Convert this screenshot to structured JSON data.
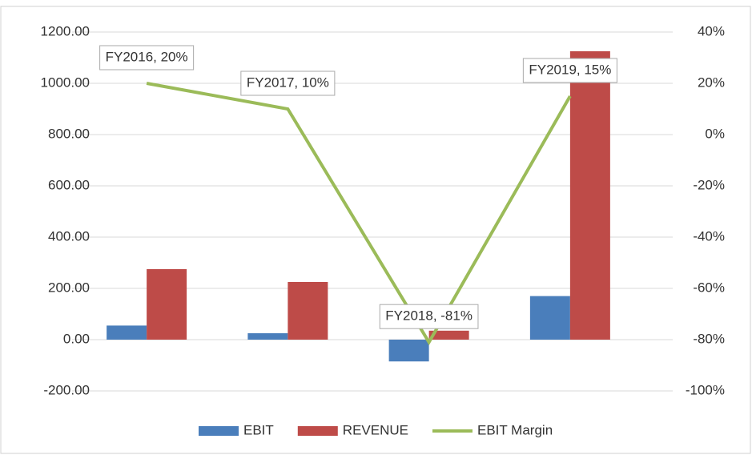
{
  "chart_data": {
    "type": "bar",
    "categories": [
      null,
      null,
      null,
      null
    ],
    "series": [
      {
        "name": "EBIT",
        "color": "#4a7ebb",
        "values": [
          55,
          25,
          -85,
          170
        ]
      },
      {
        "name": "REVENUE",
        "color": "#be4b48",
        "values": [
          275,
          225,
          35,
          1125
        ]
      },
      {
        "name": "EBIT Margin",
        "color": "#9bbb59",
        "type": "line",
        "axis": "y2",
        "values": [
          20,
          10,
          -81,
          15
        ],
        "value_labels": [
          "FY2016, 20%",
          "FY2017, 10%",
          "FY2018, -81%",
          "FY2019, 15%"
        ]
      }
    ],
    "ylim": [
      -200,
      1200
    ],
    "yticks": [
      {
        "value": -200,
        "label": "-200.00"
      },
      {
        "value": 0,
        "label": "0.00"
      },
      {
        "value": 200,
        "label": "200.00"
      },
      {
        "value": 400,
        "label": "400.00"
      },
      {
        "value": 600,
        "label": "600.00"
      },
      {
        "value": 800,
        "label": "800.00"
      },
      {
        "value": 1000,
        "label": "1000.00"
      },
      {
        "value": 1200,
        "label": "1200.00"
      }
    ],
    "y2lim": [
      -100,
      40
    ],
    "y2ticks": [
      {
        "value": -100,
        "label": "-100%"
      },
      {
        "value": -80,
        "label": "-80%"
      },
      {
        "value": -60,
        "label": "-60%"
      },
      {
        "value": -40,
        "label": "-40%"
      },
      {
        "value": -20,
        "label": "-20%"
      },
      {
        "value": 0,
        "label": "0%"
      },
      {
        "value": 20,
        "label": "20%"
      },
      {
        "value": 40,
        "label": "40%"
      }
    ],
    "grid": true,
    "legend": "bottom"
  }
}
